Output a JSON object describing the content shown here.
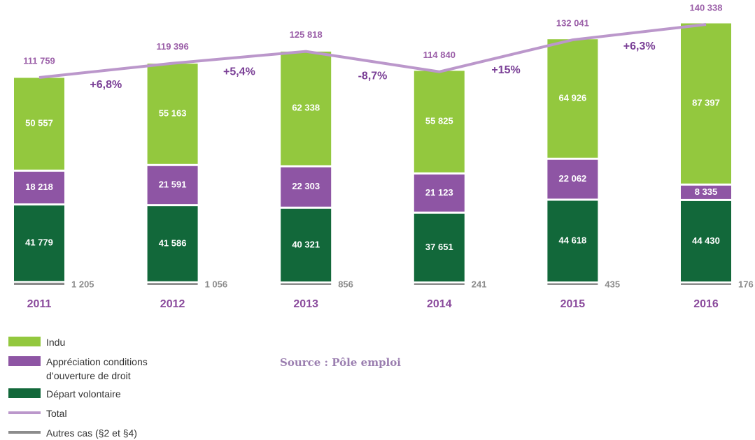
{
  "chart_data": {
    "type": "stacked_bar_line",
    "categories": [
      "2011",
      "2012",
      "2013",
      "2014",
      "2015",
      "2016"
    ],
    "series": [
      {
        "name": "Autres cas (§2 et §4)",
        "color": "#8c8c8c",
        "values": [
          1205,
          1056,
          856,
          241,
          435,
          176
        ],
        "value_labels": [
          "1 205",
          "1 056",
          "856",
          "241",
          "435",
          "176"
        ]
      },
      {
        "name": "Départ volontaire",
        "color": "#12683a",
        "values": [
          41779,
          41586,
          40321,
          37651,
          44618,
          44430
        ],
        "value_labels": [
          "41 779",
          "41 586",
          "40 321",
          "37 651",
          "44 618",
          "44 430"
        ]
      },
      {
        "name": "Appréciation conditions d’ouverture de droit",
        "color": "#8e55a4",
        "values": [
          18218,
          21591,
          22303,
          21123,
          22062,
          8335
        ],
        "value_labels": [
          "18 218",
          "21 591",
          "22 303",
          "21 123",
          "22 062",
          "8 335"
        ]
      },
      {
        "name": "Indu",
        "color": "#93c83e",
        "values": [
          50557,
          55163,
          62338,
          55825,
          64926,
          87397
        ],
        "value_labels": [
          "50 557",
          "55 163",
          "62 338",
          "55 825",
          "64 926",
          "87 397"
        ]
      }
    ],
    "total": {
      "name": "Total",
      "color": "#bb97cb",
      "values": [
        111759,
        119396,
        125818,
        114840,
        132041,
        140338
      ],
      "value_labels": [
        "111 759",
        "119 396",
        "125 818",
        "114 840",
        "132 041",
        "140 338"
      ]
    },
    "annotations": [
      "+6,8%",
      "+5,4%",
      "-8,7%",
      "+15%",
      "+6,3%"
    ],
    "legend_order": [
      3,
      2,
      1,
      "total",
      0
    ],
    "source": "Source : Pôle emploi"
  }
}
